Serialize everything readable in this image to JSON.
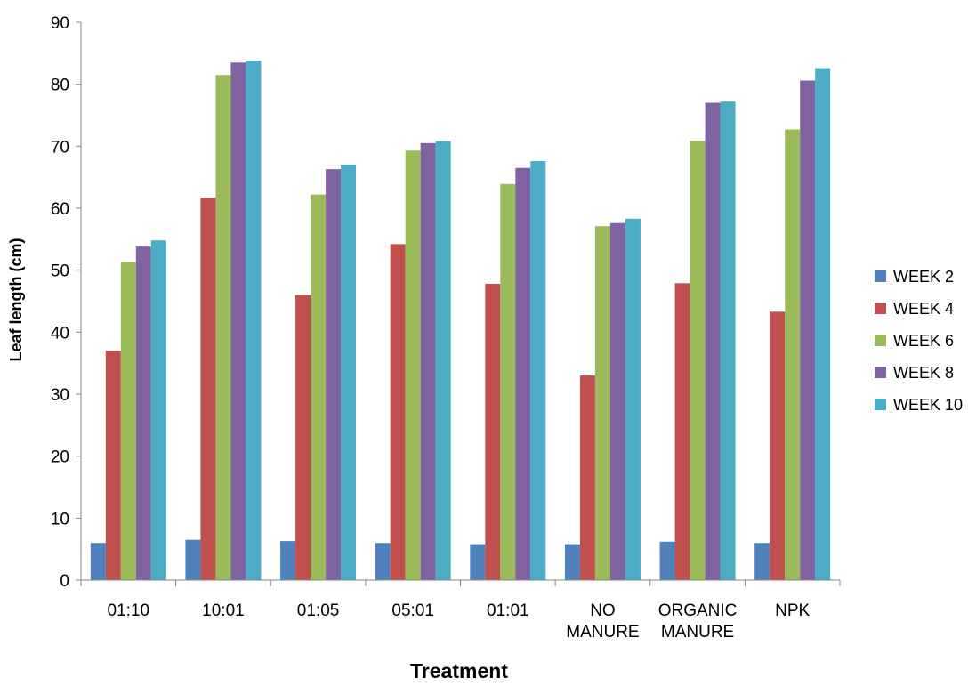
{
  "chart_data": {
    "type": "bar",
    "title": "",
    "xlabel": "Treatment",
    "ylabel": "Leaf length (cm)",
    "ylim": [
      0,
      90
    ],
    "ytick_step": 10,
    "yticks": [
      "0",
      "10",
      "20",
      "30",
      "40",
      "50",
      "60",
      "70",
      "80",
      "90"
    ],
    "grid": false,
    "legend_position": "right",
    "categories": [
      [
        "01:10"
      ],
      [
        "10:01"
      ],
      [
        "01:05"
      ],
      [
        "05:01"
      ],
      [
        "01:01"
      ],
      [
        "NO",
        "MANURE"
      ],
      [
        "ORGANIC",
        "MANURE"
      ],
      [
        "NPK"
      ]
    ],
    "series": [
      {
        "name": "WEEK 2",
        "color": "#4F81BD",
        "values": [
          6.0,
          6.5,
          6.3,
          6.0,
          5.8,
          5.8,
          6.2,
          6.0
        ]
      },
      {
        "name": "WEEK 4",
        "color": "#C0504D",
        "values": [
          37.0,
          61.7,
          46.0,
          54.2,
          47.8,
          33.0,
          47.9,
          43.3
        ]
      },
      {
        "name": "WEEK 6",
        "color": "#9BBB59",
        "values": [
          51.3,
          81.5,
          62.2,
          69.3,
          63.9,
          57.1,
          70.9,
          72.7
        ]
      },
      {
        "name": "WEEK 8",
        "color": "#8064A2",
        "values": [
          53.8,
          83.5,
          66.3,
          70.5,
          66.5,
          57.6,
          77.0,
          80.6
        ]
      },
      {
        "name": "WEEK 10",
        "color": "#4BACC6",
        "values": [
          54.8,
          83.8,
          67.0,
          70.8,
          67.6,
          58.3,
          77.2,
          82.6
        ]
      }
    ]
  }
}
